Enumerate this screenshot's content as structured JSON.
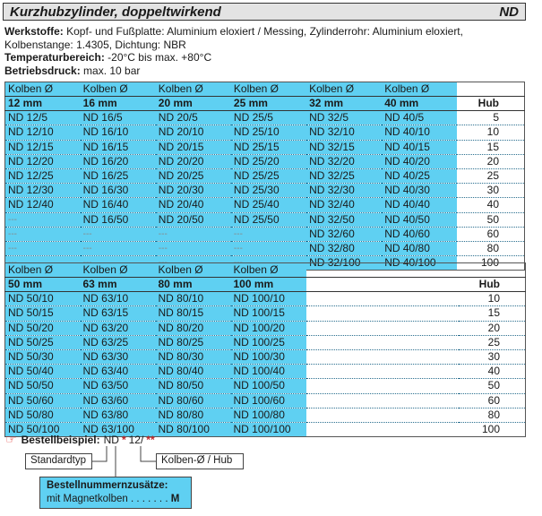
{
  "header": {
    "title": "Kurzhubzylinder, doppeltwirkend",
    "code": "ND"
  },
  "specs": {
    "werkstoffe_label": "Werkstoffe:",
    "werkstoffe_text": " Kopf- und Fußplatte: Aluminium eloxiert  / Messing, Zylinderrohr: Aluminium eloxiert, Kolbenstange: 1.4305, Dichtung: NBR",
    "temp_label": "Temperaturbereich:",
    "temp_text": " -20°C bis max. +80°C",
    "druck_label": "Betriebsdruck:",
    "druck_text": " max. 10 bar"
  },
  "table1": {
    "headers": [
      "Kolben Ø",
      "Kolben Ø",
      "Kolben Ø",
      "Kolben Ø",
      "Kolben Ø",
      "Kolben Ø"
    ],
    "sizes": [
      "12 mm",
      "16 mm",
      "20 mm",
      "25 mm",
      "32 mm",
      "40 mm"
    ],
    "hub_label": "Hub",
    "rows": [
      [
        "ND 12/5",
        "ND 16/5",
        "ND 20/5",
        "ND 25/5",
        "ND 32/5",
        "ND 40/5",
        "5"
      ],
      [
        "ND 12/10",
        "ND 16/10",
        "ND 20/10",
        "ND 25/10",
        "ND 32/10",
        "ND 40/10",
        "10"
      ],
      [
        "ND 12/15",
        "ND 16/15",
        "ND 20/15",
        "ND 25/15",
        "ND 32/15",
        "ND 40/15",
        "15"
      ],
      [
        "ND 12/20",
        "ND 16/20",
        "ND 20/20",
        "ND 25/20",
        "ND 32/20",
        "ND 40/20",
        "20"
      ],
      [
        "ND 12/25",
        "ND 16/25",
        "ND 20/25",
        "ND 25/25",
        "ND 32/25",
        "ND 40/25",
        "25"
      ],
      [
        "ND 12/30",
        "ND 16/30",
        "ND 20/30",
        "ND 25/30",
        "ND 32/30",
        "ND 40/30",
        "30"
      ],
      [
        "ND 12/40",
        "ND 16/40",
        "ND 20/40",
        "ND 25/40",
        "ND 32/40",
        "ND 40/40",
        "40"
      ],
      [
        "---",
        "ND 16/50",
        "ND 20/50",
        "ND 25/50",
        "ND 32/50",
        "ND 40/50",
        "50"
      ],
      [
        "---",
        "---",
        "---",
        "---",
        "ND 32/60",
        "ND 40/60",
        "60"
      ],
      [
        "---",
        "---",
        "---",
        "---",
        "ND 32/80",
        "ND 40/80",
        "80"
      ],
      [
        "---",
        "---",
        "---",
        "---",
        "ND 32/100",
        "ND 40/100",
        "100"
      ]
    ]
  },
  "table2": {
    "headers": [
      "Kolben Ø",
      "Kolben Ø",
      "Kolben Ø",
      "Kolben Ø"
    ],
    "sizes": [
      "50 mm",
      "63 mm",
      "80 mm",
      "100 mm"
    ],
    "hub_label": "Hub",
    "rows": [
      [
        "ND 50/10",
        "ND 63/10",
        "ND 80/10",
        "ND 100/10",
        "10"
      ],
      [
        "ND 50/15",
        "ND 63/15",
        "ND 80/15",
        "ND 100/15",
        "15"
      ],
      [
        "ND 50/20",
        "ND 63/20",
        "ND 80/20",
        "ND 100/20",
        "20"
      ],
      [
        "ND 50/25",
        "ND 63/25",
        "ND 80/25",
        "ND 100/25",
        "25"
      ],
      [
        "ND 50/30",
        "ND 63/30",
        "ND 80/30",
        "ND 100/30",
        "30"
      ],
      [
        "ND 50/40",
        "ND 63/40",
        "ND 80/40",
        "ND 100/40",
        "40"
      ],
      [
        "ND 50/50",
        "ND 63/50",
        "ND 80/50",
        "ND 100/50",
        "50"
      ],
      [
        "ND 50/60",
        "ND 63/60",
        "ND 80/60",
        "ND 100/60",
        "60"
      ],
      [
        "ND 50/80",
        "ND 63/80",
        "ND 80/80",
        "ND 100/80",
        "80"
      ],
      [
        "ND 50/100",
        "ND 63/100",
        "ND 80/100",
        "ND 100/100",
        "100"
      ]
    ]
  },
  "order": {
    "label": "Bestellbeispiel:",
    "prefix": "ND",
    "star1": "*",
    "middle": "12/",
    "star2": "**",
    "standardtyp": "Standardtyp",
    "kolben_hub": "Kolben-Ø / Hub",
    "ext_title": "Bestellnummernzusätze:",
    "ext_text": "mit Magnetkolben",
    "ext_dots": " . . . . . . . ",
    "ext_code": "M"
  },
  "colors": {
    "accent": "#5fd0f2",
    "header_bg": "#e3e3e3",
    "star": "#c0282a"
  }
}
